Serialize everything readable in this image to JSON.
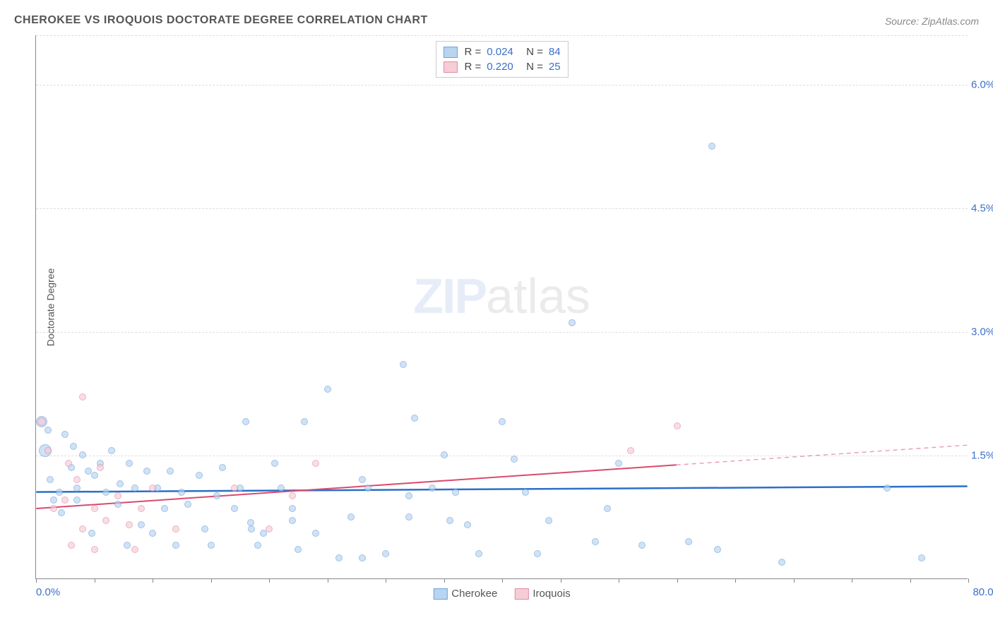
{
  "title": "CHEROKEE VS IROQUOIS DOCTORATE DEGREE CORRELATION CHART",
  "source": "Source: ZipAtlas.com",
  "y_axis_title": "Doctorate Degree",
  "watermark": {
    "zip": "ZIP",
    "atlas": "atlas"
  },
  "chart": {
    "type": "scatter",
    "xlim": [
      0,
      80
    ],
    "ylim": [
      0,
      6.6
    ],
    "x_tick_step": 5,
    "x_label_min": "0.0%",
    "x_label_max": "80.0%",
    "x_label_color": "#3b6fc9",
    "y_grid": [
      1.5,
      3.0,
      4.5,
      6.0,
      6.6
    ],
    "y_labels": [
      "1.5%",
      "3.0%",
      "4.5%",
      "6.0%",
      ""
    ],
    "y_label_color": "#3b6fc9",
    "background_color": "#ffffff",
    "grid_color": "#dddddd",
    "axis_color": "#888888",
    "series": [
      {
        "name": "Cherokee",
        "fill": "#b8d4f0",
        "stroke": "#6fa3d9",
        "fill_opacity": 0.65,
        "R": "0.024",
        "N": "84",
        "trend": {
          "y_at_x0": 1.05,
          "y_at_x80": 1.12,
          "color": "#2c6fc8",
          "width": 2.5,
          "dash_from_x": 80
        },
        "points": [
          [
            0.5,
            1.9,
            16
          ],
          [
            0.8,
            1.55,
            18
          ],
          [
            1,
            1.8,
            10
          ],
          [
            1.2,
            1.2,
            10
          ],
          [
            1.5,
            0.95,
            10
          ],
          [
            2,
            1.05,
            10
          ],
          [
            2.5,
            1.75,
            10
          ],
          [
            2.2,
            0.8,
            10
          ],
          [
            3,
            1.35,
            10
          ],
          [
            3.2,
            1.6,
            10
          ],
          [
            3.5,
            0.95,
            10
          ],
          [
            3.5,
            1.1,
            10
          ],
          [
            4,
            1.5,
            10
          ],
          [
            4.5,
            1.3,
            10
          ],
          [
            4.8,
            0.55,
            10
          ],
          [
            5,
            1.25,
            10
          ],
          [
            5.5,
            1.4,
            10
          ],
          [
            6,
            1.05,
            10
          ],
          [
            6.5,
            1.55,
            10
          ],
          [
            7,
            0.9,
            10
          ],
          [
            7.2,
            1.15,
            10
          ],
          [
            7.8,
            0.4,
            10
          ],
          [
            8,
            1.4,
            10
          ],
          [
            8.5,
            1.1,
            10
          ],
          [
            9,
            0.65,
            10
          ],
          [
            9.5,
            1.3,
            10
          ],
          [
            10,
            0.55,
            10
          ],
          [
            10.4,
            1.1,
            10
          ],
          [
            11,
            0.85,
            10
          ],
          [
            11.5,
            1.3,
            10
          ],
          [
            12,
            0.4,
            10
          ],
          [
            12.5,
            1.05,
            10
          ],
          [
            13,
            0.9,
            10
          ],
          [
            14,
            1.25,
            10
          ],
          [
            14.5,
            0.6,
            10
          ],
          [
            15,
            0.4,
            10
          ],
          [
            15.5,
            1.0,
            10
          ],
          [
            16,
            1.35,
            10
          ],
          [
            17,
            0.85,
            10
          ],
          [
            17.5,
            1.1,
            10
          ],
          [
            18,
            1.9,
            10
          ],
          [
            18.4,
            0.68,
            10
          ],
          [
            18.5,
            0.6,
            10
          ],
          [
            19,
            0.4,
            10
          ],
          [
            19.5,
            0.55,
            10
          ],
          [
            20.5,
            1.4,
            10
          ],
          [
            21,
            1.1,
            10
          ],
          [
            22,
            0.85,
            10
          ],
          [
            22,
            0.7,
            10
          ],
          [
            22.5,
            0.35,
            10
          ],
          [
            23,
            1.9,
            10
          ],
          [
            24,
            0.55,
            10
          ],
          [
            25,
            2.3,
            10
          ],
          [
            26,
            0.25,
            10
          ],
          [
            27,
            0.75,
            10
          ],
          [
            28,
            1.2,
            10
          ],
          [
            28,
            0.25,
            10
          ],
          [
            28.5,
            1.1,
            10
          ],
          [
            30,
            0.3,
            10
          ],
          [
            31.5,
            2.6,
            10
          ],
          [
            32,
            1.0,
            10
          ],
          [
            32,
            0.75,
            10
          ],
          [
            32.5,
            1.95,
            10
          ],
          [
            34,
            1.1,
            10
          ],
          [
            35,
            1.5,
            10
          ],
          [
            35.5,
            0.7,
            10
          ],
          [
            36,
            1.05,
            10
          ],
          [
            37,
            0.65,
            10
          ],
          [
            38,
            0.3,
            10
          ],
          [
            40,
            1.9,
            10
          ],
          [
            41,
            1.45,
            10
          ],
          [
            42,
            1.05,
            10
          ],
          [
            43,
            0.3,
            10
          ],
          [
            44,
            0.7,
            10
          ],
          [
            46,
            3.1,
            10
          ],
          [
            48,
            0.45,
            10
          ],
          [
            49,
            0.85,
            10
          ],
          [
            50,
            1.4,
            10
          ],
          [
            52,
            0.4,
            10
          ],
          [
            56,
            0.45,
            10
          ],
          [
            58,
            5.25,
            10
          ],
          [
            58.5,
            0.35,
            10
          ],
          [
            64,
            0.2,
            10
          ],
          [
            73,
            1.1,
            10
          ],
          [
            76,
            0.25,
            10
          ]
        ]
      },
      {
        "name": "Iroquois",
        "fill": "#f5cdd7",
        "stroke": "#e48ba3",
        "fill_opacity": 0.65,
        "R": "0.220",
        "N": "25",
        "trend": {
          "y_at_x0": 0.85,
          "y_at_x80": 1.62,
          "color": "#d94a6f",
          "width": 2,
          "dash_from_x": 55
        },
        "points": [
          [
            0.5,
            1.9,
            12
          ],
          [
            1,
            1.55,
            10
          ],
          [
            1.5,
            0.85,
            10
          ],
          [
            2.5,
            0.95,
            10
          ],
          [
            2.8,
            1.4,
            10
          ],
          [
            3,
            0.4,
            10
          ],
          [
            3.5,
            1.2,
            10
          ],
          [
            4,
            2.2,
            10
          ],
          [
            4,
            0.6,
            10
          ],
          [
            5,
            0.85,
            10
          ],
          [
            5,
            0.35,
            10
          ],
          [
            5.5,
            1.35,
            10
          ],
          [
            6,
            0.7,
            10
          ],
          [
            7,
            1.0,
            10
          ],
          [
            8,
            0.65,
            10
          ],
          [
            8.5,
            0.35,
            10
          ],
          [
            9,
            0.85,
            10
          ],
          [
            10,
            1.1,
            10
          ],
          [
            12,
            0.6,
            10
          ],
          [
            17,
            1.1,
            10
          ],
          [
            20,
            0.6,
            10
          ],
          [
            22,
            1.0,
            10
          ],
          [
            24,
            1.4,
            10
          ],
          [
            51,
            1.55,
            10
          ],
          [
            55,
            1.85,
            10
          ]
        ]
      }
    ]
  },
  "legend_bottom": [
    {
      "label": "Cherokee",
      "fill": "#b8d4f0",
      "stroke": "#6fa3d9"
    },
    {
      "label": "Iroquois",
      "fill": "#f5cdd7",
      "stroke": "#e48ba3"
    }
  ]
}
